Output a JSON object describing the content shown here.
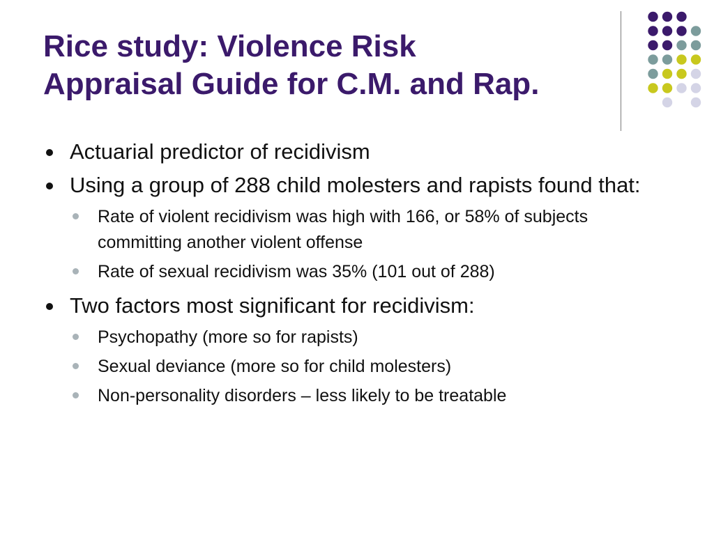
{
  "title": {
    "line1": "Rice study: Violence Risk",
    "line2": "Appraisal Guide for C.M. and Rap."
  },
  "bullets": [
    {
      "text": "Actuarial predictor of recidivism",
      "sub": []
    },
    {
      "text": "Using a group of 288 child molesters and rapists found that:",
      "sub": [
        "Rate of violent recidivism was high with 166, or 58% of subjects committing another violent offense",
        "Rate of sexual recidivism was 35% (101 out of 288)"
      ]
    },
    {
      "text": "Two factors most significant for recidivism:",
      "sub": [
        "Psychopathy (more so for rapists)",
        "Sexual deviance (more so for child molesters)",
        "Non-personality disorders – less likely to be treatable"
      ]
    }
  ],
  "colors": {
    "title": "#3b1a6b",
    "text": "#111111",
    "sub_bullet": "#a9b3b8",
    "divider": "#7a7a7a",
    "dot_purple": "#3b1a6b",
    "dot_teal": "#7c9c9c",
    "dot_yellow": "#c8c81e",
    "dot_lavender": "#d4d4e6"
  },
  "decoration": {
    "dot_grid": [
      [
        "",
        "P",
        "P",
        "P",
        ""
      ],
      [
        "",
        "P",
        "P",
        "P",
        "T"
      ],
      [
        "",
        "P",
        "P",
        "T",
        "T"
      ],
      [
        "",
        "T",
        "T",
        "Y",
        "Y"
      ],
      [
        "",
        "T",
        "Y",
        "Y",
        "L"
      ],
      [
        "",
        "Y",
        "Y",
        "L",
        "L"
      ],
      [
        "",
        "",
        "L",
        "",
        "L"
      ]
    ]
  }
}
